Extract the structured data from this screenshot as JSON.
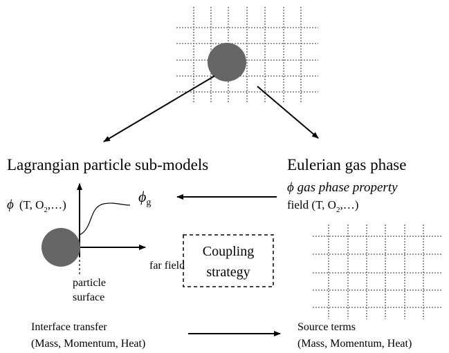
{
  "left_title": "Lagrangian particle sub-models",
  "right_title": "Eulerian gas phase",
  "axis_label": {
    "symbol": "ϕ",
    "text": "(T, O",
    "sub": "2",
    "rest": ",…)"
  },
  "phi_g": {
    "symbol": "ϕ",
    "sub": "g"
  },
  "far_field": "far field",
  "particle_surface": [
    "particle",
    "surface"
  ],
  "gas_field": {
    "line1": "ϕ gas phase property",
    "text": "field (T, O",
    "sub": "2",
    "rest": ",…)"
  },
  "coupling": [
    "Coupling",
    "strategy"
  ],
  "interface": [
    "Interface transfer",
    "(Mass, Momentum, Heat)"
  ],
  "source": [
    "Source terms",
    "(Mass, Momentum, Heat)"
  ]
}
